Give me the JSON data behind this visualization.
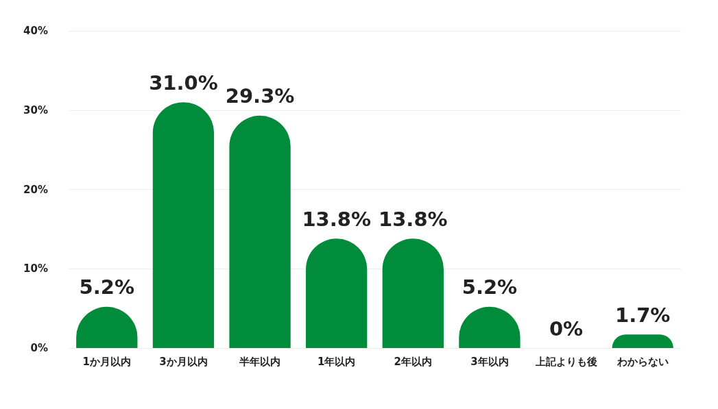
{
  "chart_data": {
    "type": "bar",
    "categories": [
      "1か月以内",
      "3か月以内",
      "半年以内",
      "1年以内",
      "2年以内",
      "3年以内",
      "上記よりも後",
      "わからない"
    ],
    "values": [
      5.2,
      31.0,
      29.3,
      13.8,
      13.8,
      5.2,
      0,
      1.7
    ],
    "value_labels": [
      "5.2%",
      "31.0%",
      "29.3%",
      "13.8%",
      "13.8%",
      "5.2%",
      "0%",
      "1.7%"
    ],
    "color": "#008c3a",
    "ylim": [
      0,
      40
    ],
    "yticks": [
      {
        "value": 0,
        "label": "0%"
      },
      {
        "value": 10,
        "label": "10%"
      },
      {
        "value": 20,
        "label": "20%"
      },
      {
        "value": 30,
        "label": "30%"
      },
      {
        "value": 40,
        "label": "40%"
      }
    ],
    "grid": "y"
  }
}
